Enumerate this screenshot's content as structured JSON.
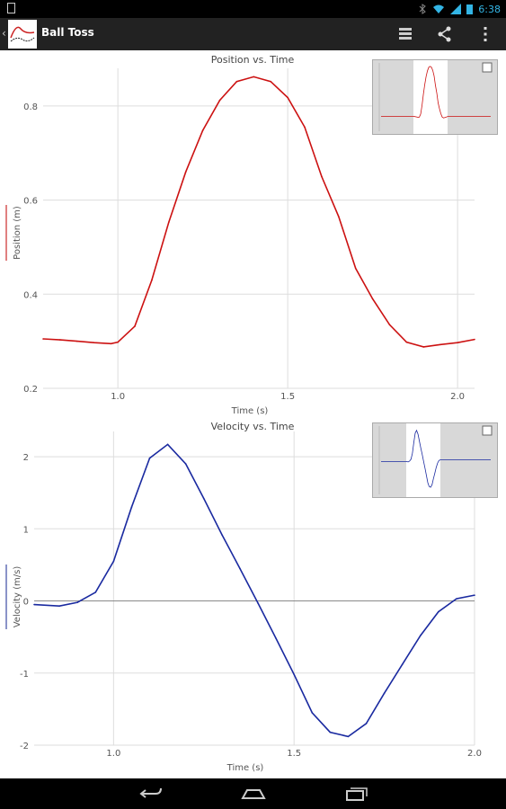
{
  "status_bar": {
    "time": "6:38"
  },
  "action_bar": {
    "title": "Ball Toss",
    "actions": [
      "view-menu-icon",
      "share-icon",
      "overflow-menu-icon"
    ]
  },
  "colors": {
    "position_line": "#cc1111",
    "velocity_line": "#1a2aa0",
    "position_legend": "#e08080",
    "velocity_legend": "#8a93c8"
  },
  "chart_data": [
    {
      "type": "line",
      "title": "Position vs. Time",
      "xlabel": "Time (s)",
      "ylabel": "Position (m)",
      "xlim": [
        0.78,
        2.05
      ],
      "ylim": [
        0.2,
        0.88
      ],
      "xticks": [
        1.0,
        1.5,
        2.0
      ],
      "yticks": [
        0.2,
        0.4,
        0.6,
        0.8
      ],
      "xtick_labels": [
        "1.0",
        "1.5",
        "2.0"
      ],
      "ytick_labels": [
        "0.2",
        "0.4",
        "0.6",
        "0.8"
      ],
      "grid": true,
      "series": [
        {
          "x": [
            0.78,
            0.83,
            0.88,
            0.93,
            0.98,
            1.0,
            1.05,
            1.1,
            1.15,
            1.2,
            1.25,
            1.3,
            1.35,
            1.4,
            1.45,
            1.5,
            1.55,
            1.6,
            1.65,
            1.7,
            1.75,
            1.8,
            1.85,
            1.9,
            1.95,
            2.0,
            2.05
          ],
          "y": [
            0.305,
            0.303,
            0.3,
            0.297,
            0.295,
            0.298,
            0.332,
            0.43,
            0.553,
            0.66,
            0.748,
            0.812,
            0.852,
            0.862,
            0.852,
            0.818,
            0.755,
            0.65,
            0.565,
            0.455,
            0.39,
            0.335,
            0.298,
            0.288,
            0.293,
            0.297,
            0.304
          ]
        }
      ]
    },
    {
      "type": "line",
      "title": "Velocity vs. Time",
      "xlabel": "Time (s)",
      "ylabel": "Velocity (m/s)",
      "xlim": [
        0.78,
        2.0
      ],
      "ylim": [
        -2.0,
        2.35
      ],
      "xticks": [
        1.0,
        1.5,
        2.0
      ],
      "yticks": [
        -2,
        -1,
        0,
        1,
        2
      ],
      "xtick_labels": [
        "1.0",
        "1.5",
        "2.0"
      ],
      "ytick_labels": [
        "-2",
        "-1",
        "0",
        "1",
        "2"
      ],
      "grid": true,
      "series": [
        {
          "x": [
            0.78,
            0.85,
            0.9,
            0.95,
            1.0,
            1.05,
            1.1,
            1.15,
            1.2,
            1.25,
            1.3,
            1.35,
            1.4,
            1.45,
            1.5,
            1.55,
            1.6,
            1.65,
            1.7,
            1.75,
            1.8,
            1.85,
            1.9,
            1.95,
            2.0
          ],
          "y": [
            -0.05,
            -0.07,
            -0.02,
            0.12,
            0.55,
            1.3,
            1.98,
            2.17,
            1.9,
            1.42,
            0.92,
            0.45,
            -0.03,
            -0.52,
            -1.02,
            -1.55,
            -1.82,
            -1.88,
            -1.7,
            -1.28,
            -0.88,
            -0.48,
            -0.15,
            0.03,
            0.08
          ]
        }
      ]
    }
  ]
}
